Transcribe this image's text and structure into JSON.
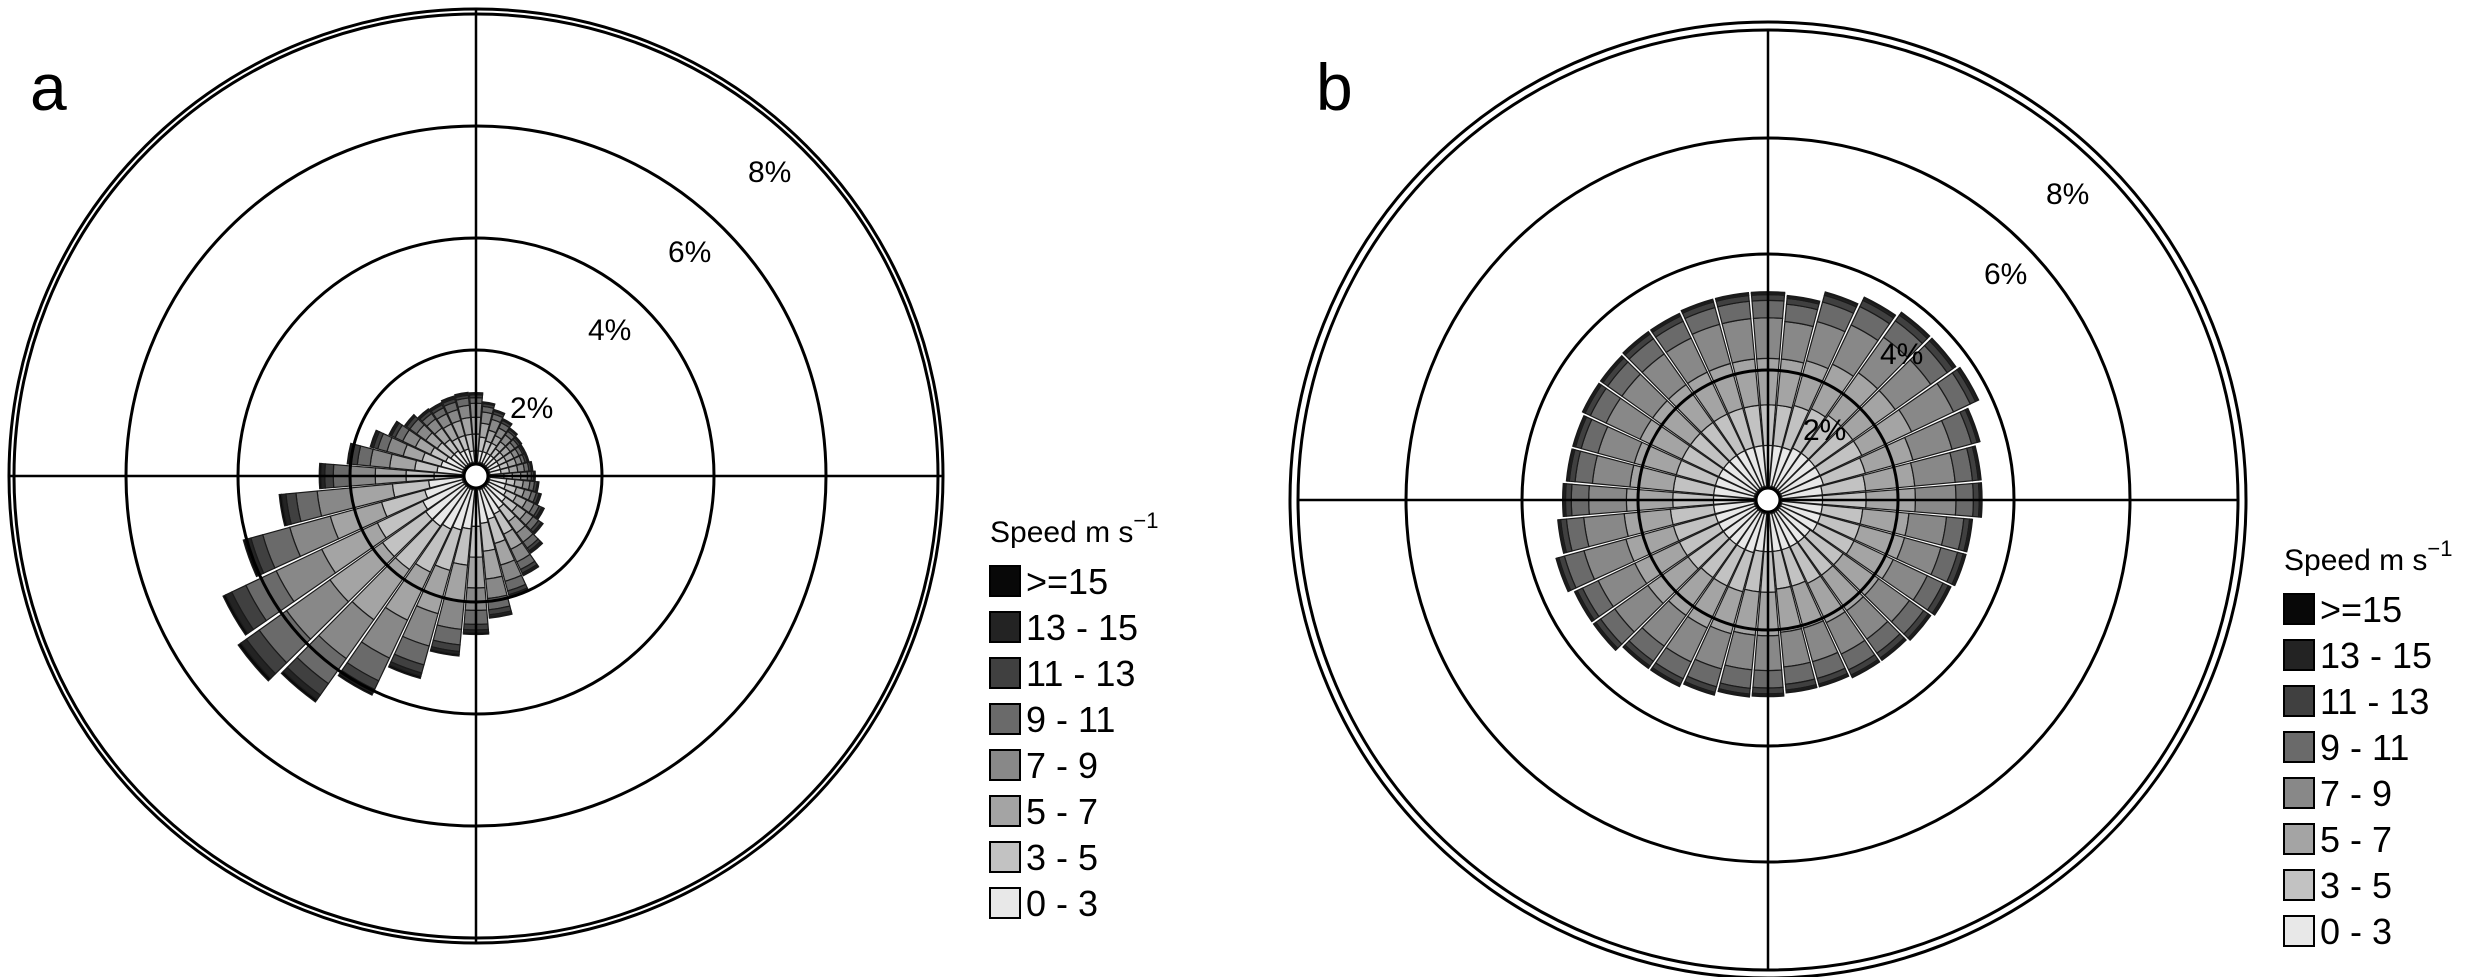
{
  "chart_data": [
    {
      "type": "windrose",
      "panel_label": "a",
      "radial_unit": "%",
      "ring_values": [
        2,
        4,
        6,
        8
      ],
      "ring_labels": [
        "2%",
        "4%",
        "6%",
        "8%"
      ],
      "directions_deg": [
        0,
        10,
        20,
        30,
        40,
        50,
        60,
        70,
        80,
        90,
        100,
        110,
        120,
        130,
        140,
        150,
        160,
        170,
        180,
        190,
        200,
        210,
        220,
        230,
        240,
        250,
        260,
        270,
        280,
        290,
        300,
        310,
        320,
        330,
        340,
        350
      ],
      "bins": [
        "0 - 3",
        "3 - 5",
        "5 - 7",
        "7 - 9",
        "9 - 11",
        "11 - 13",
        "13 - 15",
        ">=15"
      ],
      "cumulative_percent": [
        [
          0.2,
          0.5,
          0.8,
          1.05,
          1.15,
          1.2,
          1.22,
          1.24
        ],
        [
          0.2,
          0.45,
          0.7,
          0.9,
          1.0,
          1.05,
          1.07,
          1.08
        ],
        [
          0.2,
          0.4,
          0.6,
          0.8,
          0.9,
          0.95,
          0.97,
          0.98
        ],
        [
          0.2,
          0.4,
          0.55,
          0.7,
          0.8,
          0.85,
          0.87,
          0.88
        ],
        [
          0.2,
          0.35,
          0.5,
          0.65,
          0.73,
          0.77,
          0.79,
          0.8
        ],
        [
          0.2,
          0.35,
          0.5,
          0.6,
          0.68,
          0.72,
          0.74,
          0.75
        ],
        [
          0.2,
          0.35,
          0.5,
          0.6,
          0.67,
          0.7,
          0.72,
          0.73
        ],
        [
          0.2,
          0.35,
          0.5,
          0.6,
          0.66,
          0.7,
          0.72,
          0.73
        ],
        [
          0.2,
          0.35,
          0.5,
          0.62,
          0.7,
          0.74,
          0.76,
          0.77
        ],
        [
          0.25,
          0.4,
          0.55,
          0.67,
          0.74,
          0.78,
          0.8,
          0.81
        ],
        [
          0.3,
          0.45,
          0.6,
          0.72,
          0.8,
          0.85,
          0.87,
          0.88
        ],
        [
          0.3,
          0.5,
          0.65,
          0.78,
          0.87,
          0.92,
          0.95,
          0.96
        ],
        [
          0.35,
          0.55,
          0.75,
          0.9,
          1.0,
          1.05,
          1.08,
          1.1
        ],
        [
          0.4,
          0.65,
          0.85,
          1.0,
          1.12,
          1.18,
          1.21,
          1.22
        ],
        [
          0.45,
          0.75,
          1.0,
          1.2,
          1.33,
          1.39,
          1.42,
          1.44
        ],
        [
          0.5,
          0.9,
          1.2,
          1.45,
          1.6,
          1.67,
          1.7,
          1.72
        ],
        [
          0.55,
          1.0,
          1.4,
          1.7,
          1.88,
          1.95,
          1.98,
          2.0
        ],
        [
          0.6,
          1.1,
          1.6,
          1.95,
          2.15,
          2.24,
          2.28,
          2.3
        ],
        [
          0.65,
          1.2,
          1.75,
          2.15,
          2.4,
          2.5,
          2.55,
          2.58
        ],
        [
          0.7,
          1.35,
          2.0,
          2.5,
          2.78,
          2.9,
          2.95,
          2.98
        ],
        [
          0.75,
          1.5,
          2.3,
          2.9,
          3.25,
          3.4,
          3.46,
          3.5
        ],
        [
          0.8,
          1.65,
          2.6,
          3.35,
          3.8,
          3.97,
          4.04,
          4.08
        ],
        [
          0.85,
          1.8,
          2.9,
          3.75,
          4.3,
          4.55,
          4.65,
          4.7
        ],
        [
          0.85,
          1.8,
          2.95,
          3.9,
          4.5,
          4.78,
          4.9,
          4.96
        ],
        [
          0.8,
          1.7,
          2.8,
          3.7,
          4.3,
          4.58,
          4.7,
          4.75
        ],
        [
          0.7,
          1.5,
          2.45,
          3.2,
          3.7,
          3.92,
          4.02,
          4.06
        ],
        [
          0.6,
          1.25,
          2.0,
          2.6,
          2.98,
          3.16,
          3.24,
          3.28
        ],
        [
          0.5,
          1.0,
          1.55,
          2.0,
          2.3,
          2.45,
          2.52,
          2.55
        ],
        [
          0.45,
          0.85,
          1.3,
          1.65,
          1.88,
          1.99,
          2.04,
          2.06
        ],
        [
          0.4,
          0.75,
          1.1,
          1.4,
          1.57,
          1.65,
          1.69,
          1.71
        ],
        [
          0.35,
          0.65,
          0.95,
          1.2,
          1.35,
          1.42,
          1.45,
          1.47
        ],
        [
          0.3,
          0.6,
          0.85,
          1.05,
          1.2,
          1.27,
          1.3,
          1.31
        ],
        [
          0.3,
          0.55,
          0.8,
          1.0,
          1.12,
          1.18,
          1.21,
          1.22
        ],
        [
          0.25,
          0.5,
          0.78,
          0.98,
          1.1,
          1.16,
          1.19,
          1.2
        ],
        [
          0.25,
          0.5,
          0.78,
          0.98,
          1.12,
          1.18,
          1.21,
          1.23
        ],
        [
          0.2,
          0.5,
          0.8,
          1.02,
          1.15,
          1.2,
          1.23,
          1.25
        ]
      ],
      "legend_title": "Speed m s",
      "legend_title_sup": "−1"
    },
    {
      "type": "windrose",
      "panel_label": "b",
      "radial_unit": "%",
      "ring_values": [
        2,
        4,
        6,
        8
      ],
      "ring_labels": [
        "2%",
        "4%",
        "6%",
        "8%"
      ],
      "directions_deg": [
        0,
        10,
        20,
        30,
        40,
        50,
        60,
        70,
        80,
        90,
        100,
        110,
        120,
        130,
        140,
        150,
        160,
        170,
        180,
        190,
        200,
        210,
        220,
        230,
        240,
        250,
        260,
        270,
        280,
        290,
        300,
        310,
        320,
        330,
        340,
        350
      ],
      "bins": [
        "0 - 3",
        "3 - 5",
        "5 - 7",
        "7 - 9",
        "9 - 11",
        "11 - 13",
        "13 - 15",
        ">=15"
      ],
      "cumulative_percent": [
        [
          0.7,
          1.4,
          2.2,
          2.9,
          3.2,
          3.3,
          3.33,
          3.35
        ],
        [
          0.7,
          1.4,
          2.2,
          2.85,
          3.15,
          3.25,
          3.28,
          3.3
        ],
        [
          0.7,
          1.45,
          2.25,
          2.95,
          3.3,
          3.42,
          3.46,
          3.48
        ],
        [
          0.75,
          1.5,
          2.35,
          3.1,
          3.45,
          3.57,
          3.61,
          3.63
        ],
        [
          0.75,
          1.55,
          2.45,
          3.2,
          3.55,
          3.67,
          3.71,
          3.73
        ],
        [
          0.75,
          1.55,
          2.45,
          3.2,
          3.55,
          3.67,
          3.71,
          3.73
        ],
        [
          0.75,
          1.55,
          2.5,
          3.3,
          3.62,
          3.72,
          3.76,
          3.78
        ],
        [
          0.75,
          1.5,
          2.35,
          3.05,
          3.4,
          3.5,
          3.53,
          3.55
        ],
        [
          0.7,
          1.45,
          2.3,
          3.0,
          3.3,
          3.4,
          3.43,
          3.45
        ],
        [
          0.7,
          1.45,
          2.3,
          3.0,
          3.3,
          3.4,
          3.43,
          3.45
        ],
        [
          0.7,
          1.4,
          2.2,
          2.85,
          3.15,
          3.25,
          3.28,
          3.3
        ],
        [
          0.7,
          1.4,
          2.2,
          2.85,
          3.15,
          3.25,
          3.28,
          3.3
        ],
        [
          0.7,
          1.4,
          2.15,
          2.8,
          3.1,
          3.2,
          3.23,
          3.25
        ],
        [
          0.65,
          1.35,
          2.1,
          2.75,
          3.05,
          3.15,
          3.18,
          3.2
        ],
        [
          0.65,
          1.35,
          2.1,
          2.7,
          3.0,
          3.1,
          3.13,
          3.15
        ],
        [
          0.65,
          1.35,
          2.1,
          2.7,
          3.0,
          3.1,
          3.13,
          3.15
        ],
        [
          0.65,
          1.3,
          2.05,
          2.65,
          2.95,
          3.05,
          3.08,
          3.1
        ],
        [
          0.65,
          1.3,
          2.05,
          2.65,
          2.95,
          3.05,
          3.08,
          3.1
        ],
        [
          0.65,
          1.35,
          2.1,
          2.7,
          3.0,
          3.1,
          3.13,
          3.15
        ],
        [
          0.65,
          1.35,
          2.1,
          2.7,
          3.02,
          3.12,
          3.15,
          3.17
        ],
        [
          0.7,
          1.4,
          2.15,
          2.78,
          3.1,
          3.2,
          3.23,
          3.25
        ],
        [
          0.7,
          1.4,
          2.2,
          2.85,
          3.17,
          3.27,
          3.3,
          3.32
        ],
        [
          0.7,
          1.4,
          2.2,
          2.85,
          3.17,
          3.27,
          3.3,
          3.32
        ],
        [
          0.7,
          1.45,
          2.3,
          3.0,
          3.3,
          3.4,
          3.43,
          3.45
        ],
        [
          0.7,
          1.45,
          2.3,
          3.0,
          3.3,
          3.4,
          3.43,
          3.45
        ],
        [
          0.7,
          1.45,
          2.3,
          3.05,
          3.4,
          3.5,
          3.53,
          3.55
        ],
        [
          0.7,
          1.45,
          2.25,
          2.95,
          3.25,
          3.35,
          3.38,
          3.4
        ],
        [
          0.7,
          1.4,
          2.2,
          2.85,
          3.15,
          3.25,
          3.28,
          3.3
        ],
        [
          0.7,
          1.4,
          2.15,
          2.8,
          3.1,
          3.2,
          3.23,
          3.25
        ],
        [
          0.7,
          1.4,
          2.15,
          2.8,
          3.1,
          3.2,
          3.23,
          3.25
        ],
        [
          0.7,
          1.4,
          2.2,
          2.85,
          3.15,
          3.25,
          3.28,
          3.3
        ],
        [
          0.7,
          1.4,
          2.2,
          2.85,
          3.15,
          3.25,
          3.28,
          3.3
        ],
        [
          0.7,
          1.4,
          2.2,
          2.85,
          3.17,
          3.27,
          3.3,
          3.32
        ],
        [
          0.7,
          1.4,
          2.2,
          2.85,
          3.17,
          3.27,
          3.3,
          3.32
        ],
        [
          0.7,
          1.4,
          2.2,
          2.9,
          3.2,
          3.3,
          3.33,
          3.35
        ],
        [
          0.7,
          1.4,
          2.2,
          2.9,
          3.2,
          3.3,
          3.33,
          3.35
        ]
      ],
      "legend_title": "Speed m s",
      "legend_title_sup": "−1"
    }
  ],
  "colors": {
    "bins": [
      "#e8e8e8",
      "#c2c2c2",
      "#a4a4a4",
      "#888888",
      "#6a6a6a",
      "#404040",
      "#232323",
      "#080808"
    ],
    "rings": "#000000",
    "edges": "#1a1a1a"
  }
}
